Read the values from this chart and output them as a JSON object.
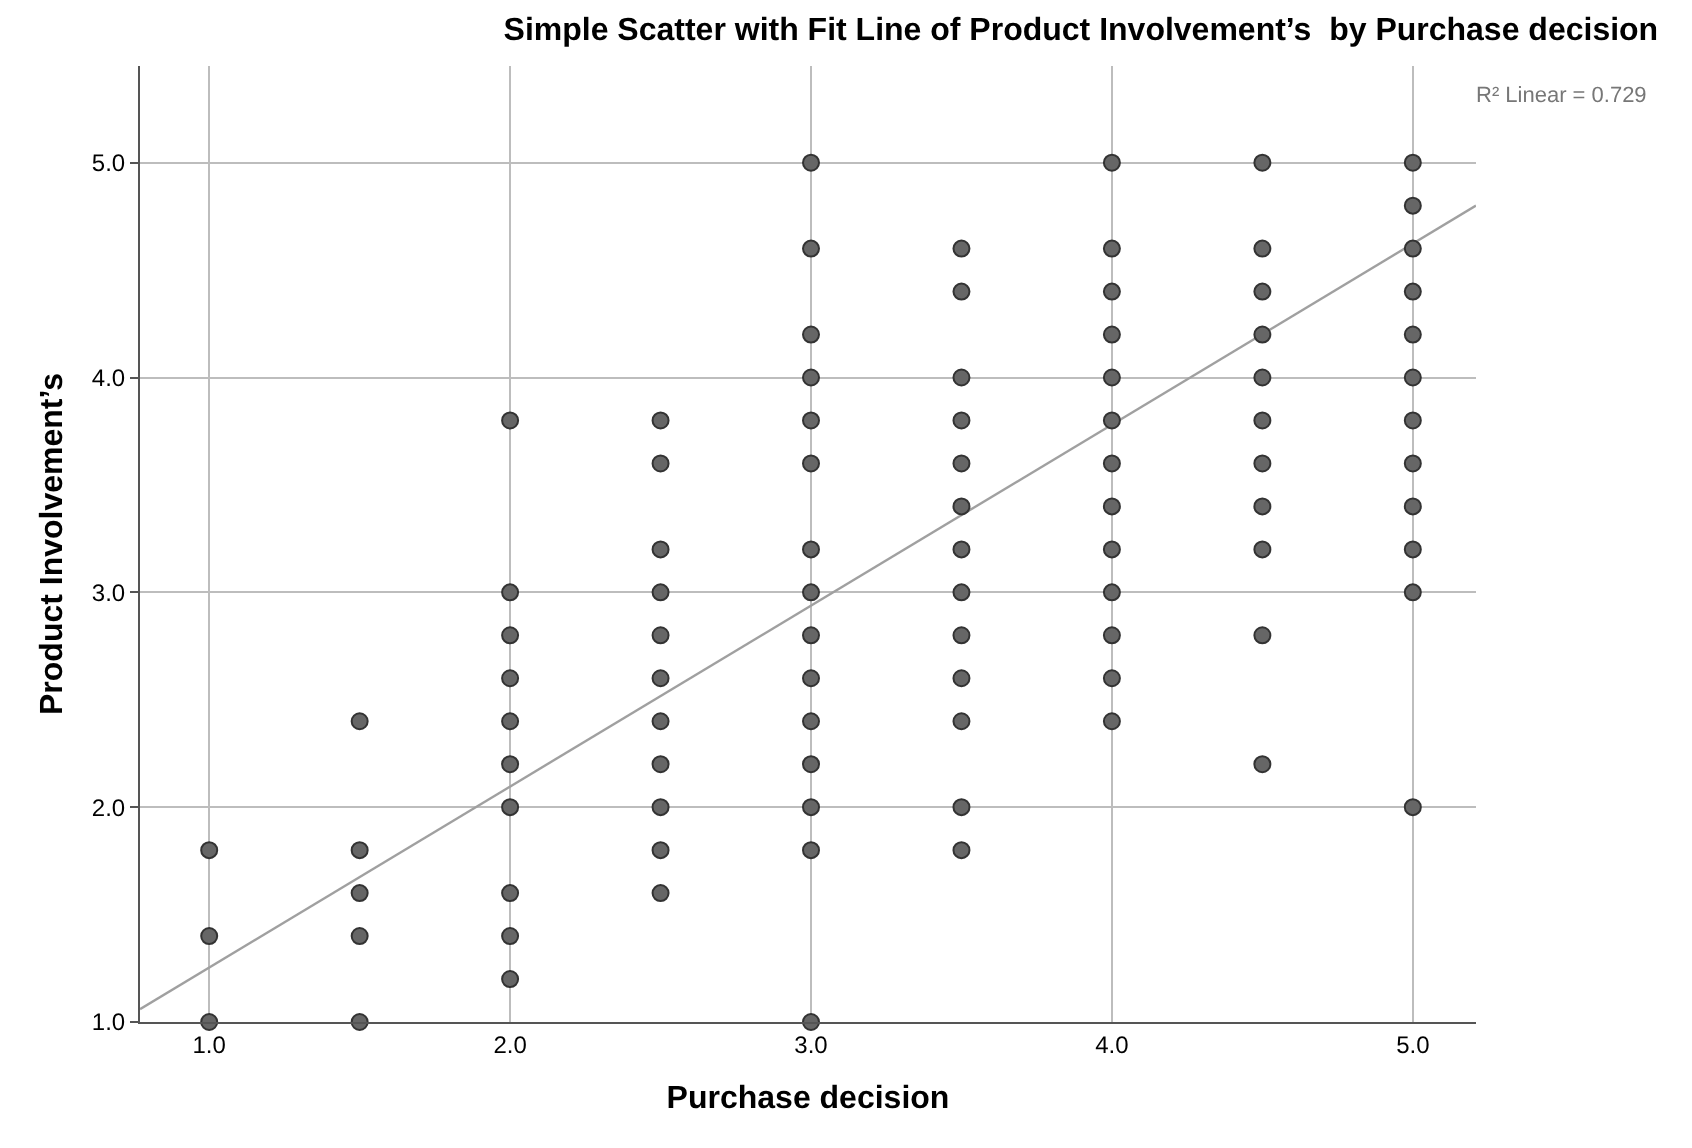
{
  "chart_data": {
    "type": "scatter",
    "title": "Simple Scatter with Fit Line of Product Involvement’s  by Purchase decision",
    "xlabel": "Purchase decision",
    "ylabel": "Product Involvement’s",
    "annotations": [
      "R² Linear = 0.729"
    ],
    "xlim": [
      0.77,
      5.21
    ],
    "ylim": [
      1.0,
      5.45
    ],
    "xticks": [
      {
        "value": 1,
        "label": "1.0"
      },
      {
        "value": 2,
        "label": "2.0"
      },
      {
        "value": 3,
        "label": "3.0"
      },
      {
        "value": 4,
        "label": "4.0"
      },
      {
        "value": 5,
        "label": "5.0"
      }
    ],
    "yticks": [
      {
        "value": 1,
        "label": "1.0"
      },
      {
        "value": 2,
        "label": "2.0"
      },
      {
        "value": 3,
        "label": "3.0"
      },
      {
        "value": 4,
        "label": "4.0"
      },
      {
        "value": 5,
        "label": "5.0"
      }
    ],
    "grid": true,
    "series": [
      {
        "marker": "circle",
        "color": "#666666",
        "x": [
          1,
          1,
          1,
          1.5,
          1.5,
          1.5,
          1.5,
          1.5,
          2,
          2,
          2,
          2,
          2,
          2,
          2,
          2,
          2,
          2,
          2.5,
          2.5,
          2.5,
          2.5,
          2.5,
          2.5,
          2.5,
          2.5,
          2.5,
          2.5,
          2.5,
          3,
          3,
          3,
          3,
          3,
          3,
          3,
          3,
          3,
          3,
          3,
          3,
          3,
          3,
          3,
          3.5,
          3.5,
          3.5,
          3.5,
          3.5,
          3.5,
          3.5,
          3.5,
          3.5,
          3.5,
          3.5,
          3.5,
          3.5,
          4,
          4,
          4,
          4,
          4,
          4,
          4,
          4,
          4,
          4,
          4,
          4,
          4,
          4.5,
          4.5,
          4.5,
          4.5,
          4.5,
          4.5,
          4.5,
          4.5,
          4.5,
          4.5,
          4.5,
          5,
          5,
          5,
          5,
          5,
          5,
          5,
          5,
          5,
          5,
          5,
          5
        ],
        "values": [
          1.8,
          1.4,
          1.0,
          2.4,
          1.8,
          1.6,
          1.4,
          1.0,
          3.8,
          3.0,
          2.8,
          2.6,
          2.4,
          2.2,
          2.0,
          1.6,
          1.4,
          1.2,
          3.8,
          3.6,
          3.2,
          3.0,
          2.8,
          2.6,
          2.4,
          2.2,
          2.0,
          1.8,
          1.6,
          5.0,
          4.6,
          4.2,
          4.0,
          3.8,
          3.6,
          3.2,
          3.0,
          2.8,
          2.6,
          2.4,
          2.2,
          2.0,
          1.8,
          1.0,
          4.6,
          4.4,
          4.0,
          3.8,
          3.6,
          3.4,
          3.2,
          3.0,
          2.8,
          2.6,
          2.4,
          2.0,
          1.8,
          5.0,
          4.6,
          4.4,
          4.2,
          4.0,
          3.8,
          3.6,
          3.4,
          3.2,
          3.0,
          2.8,
          2.6,
          2.4,
          5.0,
          4.6,
          4.4,
          4.2,
          4.0,
          3.8,
          3.6,
          3.4,
          3.2,
          2.8,
          2.2,
          5.0,
          4.8,
          4.6,
          4.4,
          4.2,
          4.0,
          3.8,
          3.6,
          3.4,
          3.2,
          3.0,
          2.0
        ]
      },
      {
        "type": "line",
        "color": "#a0a0a0",
        "x": [
          0.77,
          5.21
        ],
        "values": [
          1.06,
          4.8
        ]
      }
    ]
  }
}
